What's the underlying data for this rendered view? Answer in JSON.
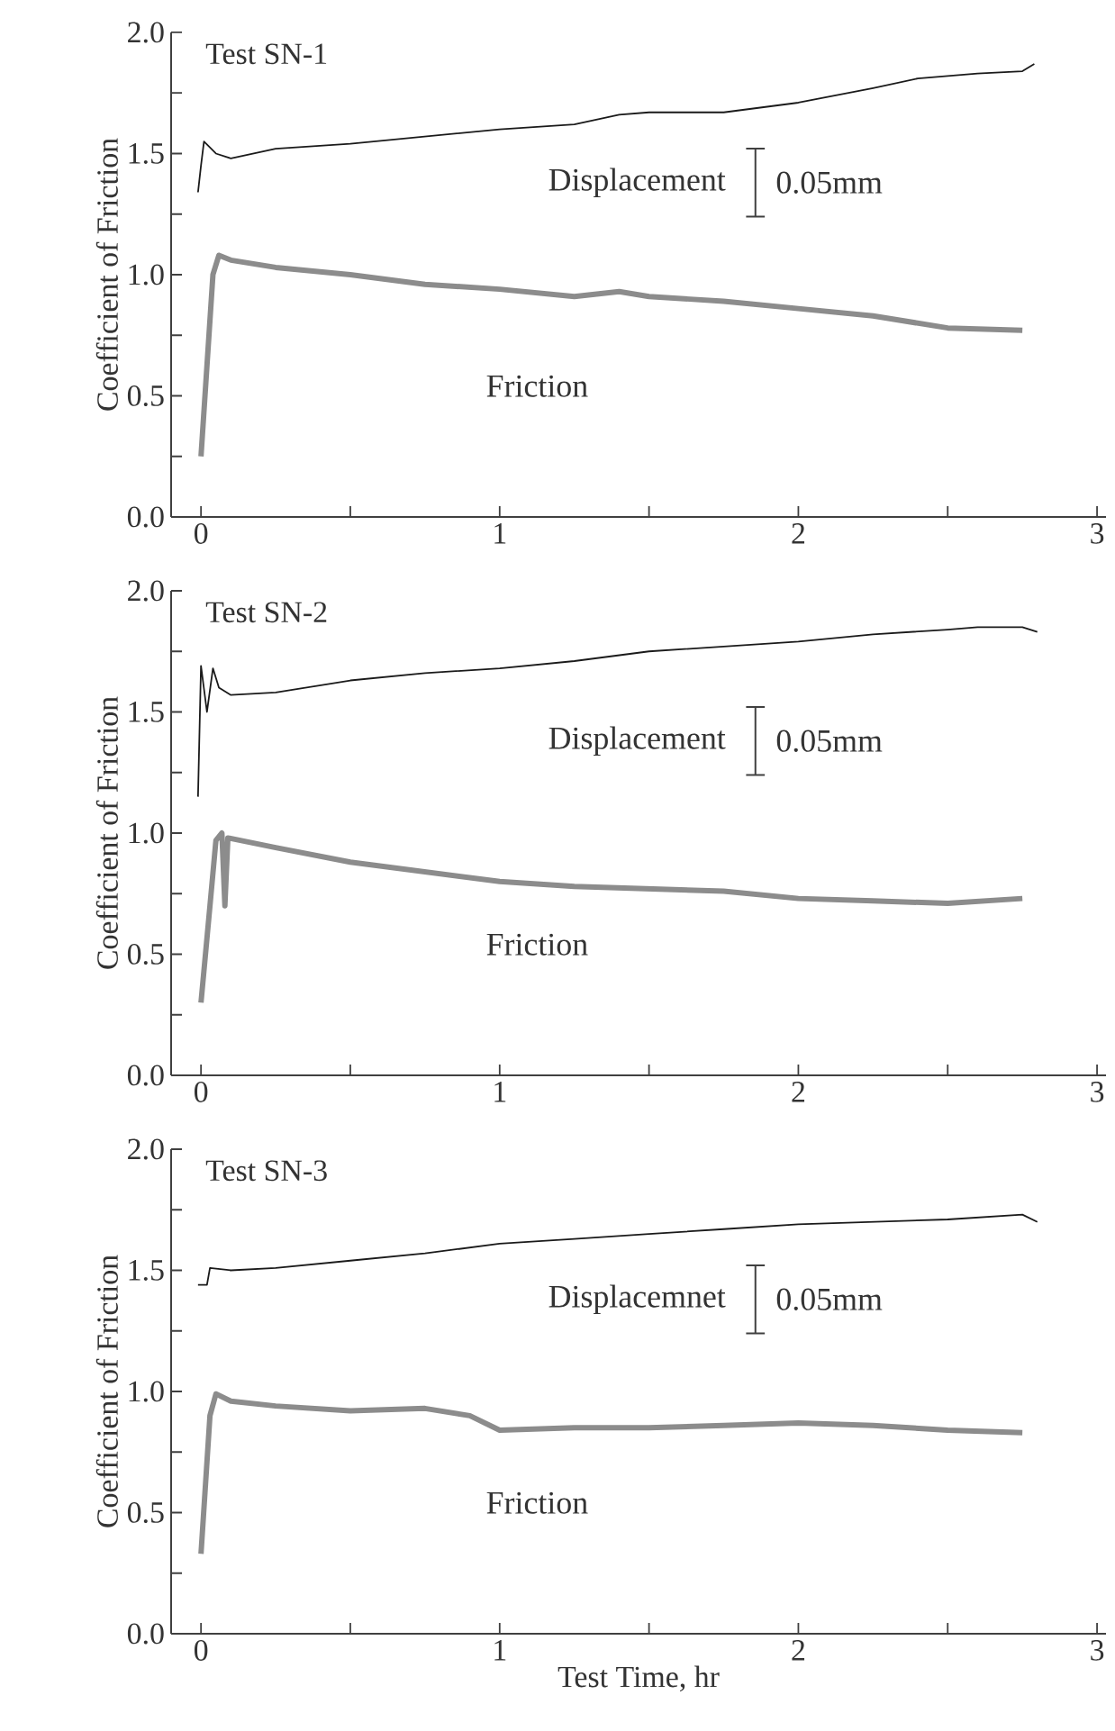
{
  "chart_data": [
    {
      "type": "line",
      "ylabel": "Coefficient of Friction",
      "annotations": [
        "Test SN-1",
        "0.05mm"
      ],
      "xlim": [
        -0.1,
        3.03
      ],
      "ylim": [
        0,
        2
      ],
      "xticks": [
        0,
        {
          "value": 0.5,
          "label": null
        },
        1,
        {
          "value": 1.5,
          "label": null
        },
        2,
        {
          "value": 2.5,
          "label": null
        },
        3
      ],
      "yticks": [
        {
          "value": 0,
          "label": "0.0"
        },
        {
          "value": 0.25,
          "label": null
        },
        {
          "value": 0.5,
          "label": "0.5"
        },
        {
          "value": 0.75,
          "label": null
        },
        {
          "value": 1,
          "label": "1.0"
        },
        {
          "value": 1.25,
          "label": null
        },
        {
          "value": 1.5,
          "label": "1.5"
        },
        {
          "value": 1.75,
          "label": null
        },
        {
          "value": 2,
          "label": "2.0"
        }
      ],
      "series": [
        {
          "name": "Displacement",
          "color": "#1a1a1a",
          "x": [
            -0.01,
            0.0,
            0.01,
            0.05,
            0.1,
            0.25,
            0.5,
            0.75,
            1.0,
            1.25,
            1.4,
            1.5,
            1.75,
            2.0,
            2.25,
            2.4,
            2.6,
            2.75,
            2.79
          ],
          "values": [
            1.34,
            1.45,
            1.55,
            1.5,
            1.48,
            1.52,
            1.54,
            1.57,
            1.6,
            1.62,
            1.66,
            1.67,
            1.67,
            1.71,
            1.77,
            1.81,
            1.83,
            1.84,
            1.87
          ]
        },
        {
          "name": "Friction",
          "color": "#8c8c8c",
          "x": [
            0.0,
            0.04,
            0.06,
            0.1,
            0.25,
            0.5,
            0.75,
            1.0,
            1.25,
            1.4,
            1.5,
            1.75,
            2.0,
            2.25,
            2.5,
            2.75
          ],
          "values": [
            0.25,
            1.0,
            1.08,
            1.06,
            1.03,
            1.0,
            0.96,
            0.94,
            0.91,
            0.93,
            0.91,
            0.89,
            0.86,
            0.83,
            0.78,
            0.77
          ]
        }
      ]
    },
    {
      "type": "line",
      "ylabel": "Coefficient of Friction",
      "annotations": [
        "Test SN-2",
        "0.05mm"
      ],
      "xlim": [
        -0.1,
        3.03
      ],
      "ylim": [
        0,
        2
      ],
      "xticks": [
        0,
        {
          "value": 0.5,
          "label": null
        },
        1,
        {
          "value": 1.5,
          "label": null
        },
        2,
        {
          "value": 2.5,
          "label": null
        },
        3
      ],
      "yticks": [
        {
          "value": 0,
          "label": "0.0"
        },
        {
          "value": 0.25,
          "label": null
        },
        {
          "value": 0.5,
          "label": "0.5"
        },
        {
          "value": 0.75,
          "label": null
        },
        {
          "value": 1,
          "label": "1.0"
        },
        {
          "value": 1.25,
          "label": null
        },
        {
          "value": 1.5,
          "label": "1.5"
        },
        {
          "value": 1.75,
          "label": null
        },
        {
          "value": 2,
          "label": "2.0"
        }
      ],
      "series": [
        {
          "name": "Displacement",
          "color": "#1a1a1a",
          "x": [
            -0.01,
            0.0,
            0.02,
            0.04,
            0.06,
            0.1,
            0.25,
            0.5,
            0.75,
            1.0,
            1.25,
            1.5,
            1.75,
            2.0,
            2.25,
            2.5,
            2.6,
            2.75,
            2.8
          ],
          "values": [
            1.15,
            1.69,
            1.5,
            1.68,
            1.6,
            1.57,
            1.58,
            1.63,
            1.66,
            1.68,
            1.71,
            1.75,
            1.77,
            1.79,
            1.82,
            1.84,
            1.85,
            1.85,
            1.83
          ]
        },
        {
          "name": "Friction",
          "color": "#8c8c8c",
          "x": [
            0.0,
            0.03,
            0.05,
            0.07,
            0.08,
            0.09,
            0.25,
            0.5,
            0.75,
            1.0,
            1.25,
            1.5,
            1.75,
            2.0,
            2.25,
            2.5,
            2.75
          ],
          "values": [
            0.3,
            0.7,
            0.97,
            1.0,
            0.7,
            0.98,
            0.94,
            0.88,
            0.84,
            0.8,
            0.78,
            0.77,
            0.76,
            0.73,
            0.72,
            0.71,
            0.73
          ]
        }
      ]
    },
    {
      "type": "line",
      "xlabel": "Test Time, hr",
      "ylabel": "Coefficient of Friction",
      "annotations": [
        "Test SN-3",
        "0.05mm"
      ],
      "xlim": [
        -0.1,
        3.03
      ],
      "ylim": [
        0,
        2
      ],
      "xticks": [
        0,
        {
          "value": 0.5,
          "label": null
        },
        1,
        {
          "value": 1.5,
          "label": null
        },
        2,
        {
          "value": 2.5,
          "label": null
        },
        3
      ],
      "yticks": [
        {
          "value": 0,
          "label": "0.0"
        },
        {
          "value": 0.25,
          "label": null
        },
        {
          "value": 0.5,
          "label": "0.5"
        },
        {
          "value": 0.75,
          "label": null
        },
        {
          "value": 1,
          "label": "1.0"
        },
        {
          "value": 1.25,
          "label": null
        },
        {
          "value": 1.5,
          "label": "1.5"
        },
        {
          "value": 1.75,
          "label": null
        },
        {
          "value": 2,
          "label": "2.0"
        }
      ],
      "series": [
        {
          "name": "Displacemnet",
          "color": "#1a1a1a",
          "x": [
            -0.01,
            0.02,
            0.03,
            0.1,
            0.25,
            0.5,
            0.75,
            1.0,
            1.25,
            1.5,
            1.75,
            2.0,
            2.25,
            2.5,
            2.75,
            2.8
          ],
          "values": [
            1.44,
            1.44,
            1.51,
            1.5,
            1.51,
            1.54,
            1.57,
            1.61,
            1.63,
            1.65,
            1.67,
            1.69,
            1.7,
            1.71,
            1.73,
            1.7
          ]
        },
        {
          "name": "Friction",
          "color": "#8c8c8c",
          "x": [
            0.0,
            0.03,
            0.05,
            0.1,
            0.25,
            0.5,
            0.75,
            0.9,
            1.0,
            1.25,
            1.5,
            1.75,
            2.0,
            2.25,
            2.5,
            2.75
          ],
          "values": [
            0.33,
            0.9,
            0.99,
            0.96,
            0.94,
            0.92,
            0.93,
            0.9,
            0.84,
            0.85,
            0.85,
            0.86,
            0.87,
            0.86,
            0.84,
            0.83
          ]
        }
      ]
    }
  ]
}
